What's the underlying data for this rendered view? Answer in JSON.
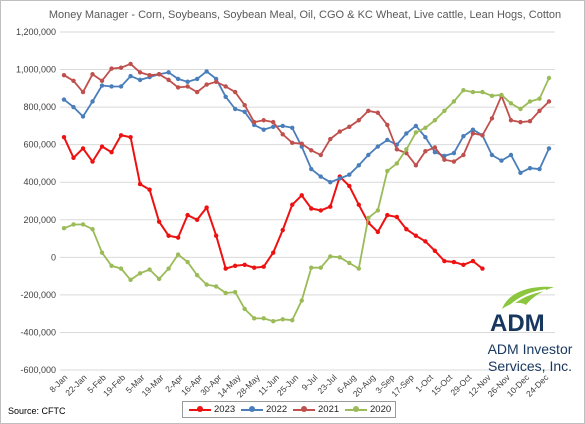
{
  "chart_data": {
    "type": "line",
    "title": "Money Manager - Corn, Soybeans, Soybean Meal, Oil, CGO & KC Wheat, Live cattle, Lean Hogs, Cotton",
    "ylim": [
      -600000,
      1200000
    ],
    "yticks": [
      1200000,
      1000000,
      800000,
      600000,
      400000,
      200000,
      0,
      -200000,
      -400000,
      -600000
    ],
    "ytick_labels": [
      "1,200,000",
      "1,000,000",
      "800,000",
      "600,000",
      "400,000",
      "200,000",
      "0",
      "-200,000",
      "-400,000",
      "-600,000"
    ],
    "x_labels": [
      "8-Jan",
      "22-Jan",
      "5-Feb",
      "19-Feb",
      "5-Mar",
      "19-Mar",
      "2-Apr",
      "16-Apr",
      "30-Apr",
      "14-May",
      "28-May",
      "11-Jun",
      "25-Jun",
      "9-Jul",
      "23-Jul",
      "6-Aug",
      "20-Aug",
      "3-Sep",
      "17-Sep",
      "1-Oct",
      "15-Oct",
      "29-Oct",
      "12-Nov",
      "26-Nov",
      "10-Dec",
      "24-Dec"
    ],
    "grid": true,
    "legend_position": "bottom",
    "series": [
      {
        "name": "2023",
        "color": "#ee1111",
        "values": [
          640000,
          530000,
          580000,
          510000,
          590000,
          560000,
          650000,
          640000,
          390000,
          360000,
          190000,
          115000,
          105000,
          225000,
          200000,
          265000,
          115000,
          -60000,
          -45000,
          -40000,
          -55000,
          -50000,
          25000,
          145000,
          280000,
          330000,
          260000,
          250000,
          270000,
          430000,
          380000,
          280000,
          185000,
          135000,
          225000,
          215000,
          150000,
          115000,
          85000,
          35000,
          -20000,
          -25000,
          -40000,
          -20000,
          -60000
        ]
      },
      {
        "name": "2022",
        "color": "#4a7ebb",
        "values": [
          840000,
          800000,
          750000,
          830000,
          915000,
          910000,
          910000,
          965000,
          945000,
          960000,
          975000,
          985000,
          950000,
          935000,
          950000,
          990000,
          950000,
          855000,
          790000,
          775000,
          705000,
          680000,
          695000,
          700000,
          690000,
          590000,
          470000,
          430000,
          400000,
          420000,
          440000,
          490000,
          545000,
          590000,
          625000,
          600000,
          660000,
          700000,
          640000,
          560000,
          540000,
          555000,
          645000,
          680000,
          650000,
          545000,
          515000,
          545000,
          450000,
          475000,
          470000,
          580000
        ]
      },
      {
        "name": "2021",
        "color": "#c0504d",
        "values": [
          970000,
          940000,
          880000,
          975000,
          940000,
          1005000,
          1010000,
          1030000,
          985000,
          970000,
          975000,
          945000,
          905000,
          910000,
          880000,
          920000,
          935000,
          910000,
          880000,
          810000,
          720000,
          730000,
          720000,
          655000,
          610000,
          605000,
          570000,
          545000,
          630000,
          670000,
          695000,
          730000,
          780000,
          770000,
          705000,
          575000,
          555000,
          490000,
          565000,
          585000,
          520000,
          510000,
          545000,
          660000,
          650000,
          740000,
          860000,
          730000,
          720000,
          725000,
          780000,
          830000
        ]
      },
      {
        "name": "2020",
        "color": "#9bbb59",
        "values": [
          155000,
          175000,
          175000,
          150000,
          25000,
          -45000,
          -60000,
          -120000,
          -85000,
          -65000,
          -115000,
          -60000,
          15000,
          -25000,
          -95000,
          -145000,
          -155000,
          -190000,
          -185000,
          -275000,
          -325000,
          -325000,
          -340000,
          -330000,
          -335000,
          -230000,
          -55000,
          -55000,
          5000,
          0,
          -30000,
          -60000,
          210000,
          250000,
          460000,
          500000,
          575000,
          665000,
          690000,
          730000,
          780000,
          830000,
          890000,
          880000,
          880000,
          860000,
          865000,
          820000,
          790000,
          830000,
          845000,
          955000
        ]
      }
    ]
  },
  "footer": {
    "source": "Source:  CFTC"
  },
  "logo": {
    "word": "ADM",
    "line1": "ADM Investor",
    "line2": "Services, Inc.",
    "brand_color": "#17375e",
    "leaf_color": "#8cc63f"
  }
}
